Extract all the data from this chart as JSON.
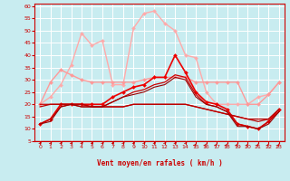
{
  "xlabel": "Vent moyen/en rafales ( km/h )",
  "xlim_min": -0.5,
  "xlim_max": 23.5,
  "ylim_min": 5,
  "ylim_max": 61,
  "yticks": [
    5,
    10,
    15,
    20,
    25,
    30,
    35,
    40,
    45,
    50,
    55,
    60
  ],
  "xticks": [
    0,
    1,
    2,
    3,
    4,
    5,
    6,
    7,
    8,
    9,
    10,
    11,
    12,
    13,
    14,
    15,
    16,
    17,
    18,
    19,
    20,
    21,
    22,
    23
  ],
  "bg_color": "#c8ecf0",
  "grid_color": "#ffffff",
  "lines": [
    {
      "y": [
        20,
        23,
        28,
        36,
        49,
        44,
        46,
        28,
        28,
        51,
        57,
        58,
        53,
        50,
        40,
        39,
        25,
        20,
        20,
        20,
        20,
        23,
        24,
        29
      ],
      "color": "#ffaaaa",
      "lw": 1.0,
      "marker": "D",
      "ms": 2.0
    },
    {
      "y": [
        20,
        29,
        34,
        32,
        30,
        29,
        29,
        29,
        29,
        29,
        30,
        31,
        31,
        31,
        31,
        29,
        29,
        29,
        29,
        29,
        20,
        20,
        24,
        29
      ],
      "color": "#ff9999",
      "lw": 1.0,
      "marker": "D",
      "ms": 2.0
    },
    {
      "y": [
        12,
        14,
        20,
        20,
        20,
        20,
        20,
        23,
        25,
        27,
        28,
        31,
        31,
        40,
        33,
        25,
        21,
        20,
        18,
        12,
        11,
        10,
        13,
        18
      ],
      "color": "#ee0000",
      "lw": 1.2,
      "marker": "D",
      "ms": 2.0
    },
    {
      "y": [
        20,
        20,
        20,
        20,
        20,
        19,
        19,
        19,
        19,
        20,
        20,
        20,
        20,
        20,
        20,
        19,
        18,
        17,
        16,
        15,
        14,
        14,
        14,
        18
      ],
      "color": "#cc0000",
      "lw": 0.9,
      "marker": null,
      "ms": 0
    },
    {
      "y": [
        19,
        20,
        20,
        20,
        20,
        19,
        19,
        19,
        19,
        20,
        20,
        20,
        20,
        20,
        20,
        19,
        18,
        17,
        16,
        15,
        14,
        13,
        14,
        18
      ],
      "color": "#bb0000",
      "lw": 0.9,
      "marker": null,
      "ms": 0
    },
    {
      "y": [
        12,
        14,
        19,
        20,
        19,
        19,
        19,
        21,
        23,
        25,
        26,
        28,
        29,
        32,
        31,
        24,
        20,
        19,
        17,
        12,
        11,
        10,
        13,
        17
      ],
      "color": "#cc0000",
      "lw": 0.9,
      "marker": null,
      "ms": 0
    },
    {
      "y": [
        12,
        13,
        19,
        20,
        19,
        19,
        19,
        21,
        23,
        24,
        25,
        27,
        28,
        31,
        30,
        23,
        20,
        19,
        17,
        11,
        11,
        10,
        12,
        17
      ],
      "color": "#990000",
      "lw": 0.8,
      "marker": null,
      "ms": 0
    }
  ],
  "arrow_angles_deg": [
    90,
    90,
    90,
    90,
    85,
    90,
    90,
    90,
    90,
    90,
    90,
    90,
    85,
    85,
    80,
    70,
    65,
    60,
    55,
    55,
    50,
    50,
    50,
    45
  ]
}
